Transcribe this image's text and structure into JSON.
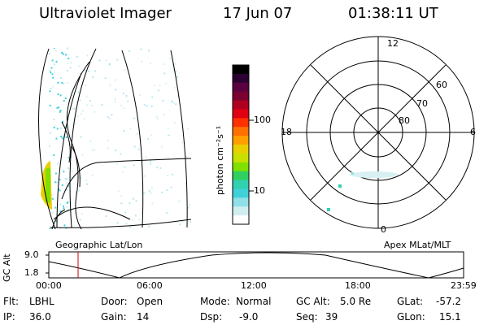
{
  "header": {
    "title": "Ultraviolet Imager",
    "date": "17 Jun 07",
    "time": "01:38:11 UT"
  },
  "colorbar": {
    "label": "photon cm⁻²s⁻¹",
    "ticks": [
      "100",
      "10"
    ],
    "colors": [
      "#000000",
      "#2a0030",
      "#5a0040",
      "#7a0030",
      "#b00020",
      "#e00010",
      "#ff3000",
      "#ff7000",
      "#ffa000",
      "#e8d000",
      "#c8e000",
      "#80e000",
      "#30d060",
      "#30d0b0",
      "#40d0d8",
      "#90e0e8",
      "#d0eef0",
      "#ffffff"
    ]
  },
  "polar": {
    "hour_labels": {
      "top": "12",
      "left": "18",
      "right": "6",
      "bottom": "0"
    },
    "lat_labels": [
      "60",
      "70",
      "80"
    ]
  },
  "labels": {
    "left_plot": "Geographic Lat/Lon",
    "right_plot": "Apex MLat/MLT"
  },
  "altitude_plot": {
    "ylabel": "GC Alt",
    "ytick_high": "9.0",
    "ytick_low": "1.8",
    "xticks": [
      "00:00",
      "06:00",
      "12:00",
      "18:00",
      "23:59"
    ],
    "marker_color": "#cc0000"
  },
  "footer": {
    "flt_label": "Flt:",
    "flt_value": "LBHL",
    "ip_label": "IP:",
    "ip_value": "36.0",
    "door_label": "Door:",
    "door_value": "Open",
    "gain_label": "Gain:",
    "gain_value": "14",
    "mode_label": "Mode:",
    "mode_value": "Normal",
    "dsp_label": "Dsp:",
    "dsp_value": "-9.0",
    "gcalt_label": "GC Alt:",
    "gcalt_value": "5.0 Re",
    "seq_label": "Seq:",
    "seq_value": "39",
    "glat_label": "GLat:",
    "glat_value": "-57.2",
    "glon_label": "GLon:",
    "glon_value": "15.1"
  }
}
